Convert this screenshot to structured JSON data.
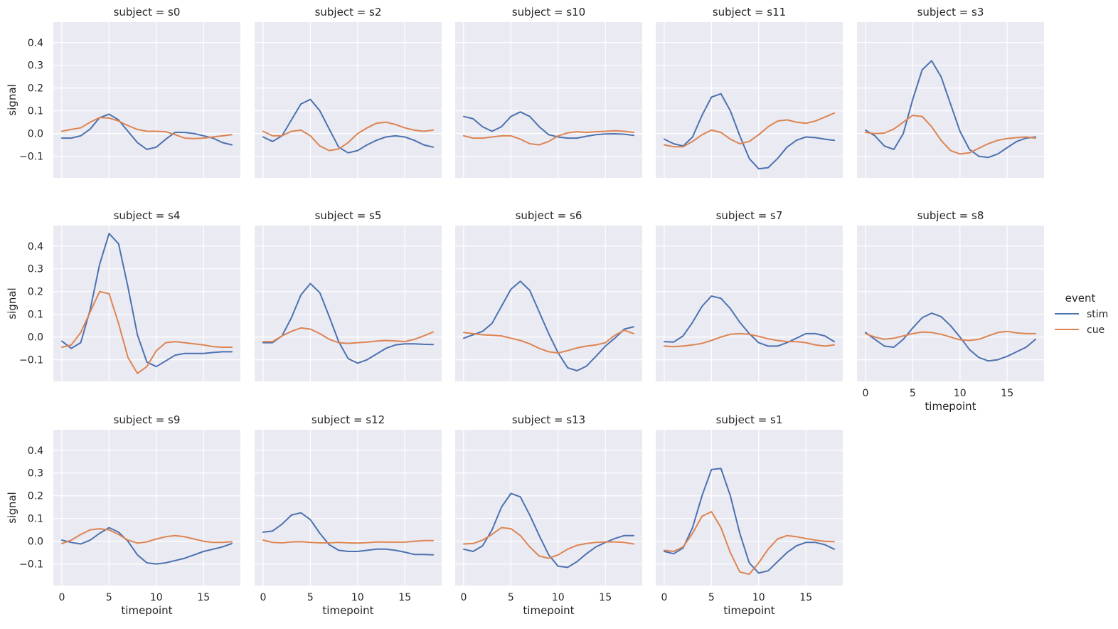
{
  "chart_data": {
    "type": "line",
    "grid_cols": 5,
    "xlabel": "timepoint",
    "ylabel": "signal",
    "xlim": [
      -0.9,
      18.9
    ],
    "ylim": [
      -0.195,
      0.49
    ],
    "xticks": [
      0,
      5,
      10,
      15
    ],
    "yticks": [
      -0.1,
      0.0,
      0.1,
      0.2,
      0.3,
      0.4
    ],
    "ytick_labels": [
      "−0.1",
      "0.0",
      "0.1",
      "0.2",
      "0.3",
      "0.4"
    ],
    "grid": true,
    "legend": {
      "title": "event",
      "placement": "right",
      "entries": [
        {
          "name": "stim",
          "color": "#4C72B0"
        },
        {
          "name": "cue",
          "color": "#DD8452"
        }
      ]
    },
    "x": [
      0,
      1,
      2,
      3,
      4,
      5,
      6,
      7,
      8,
      9,
      10,
      11,
      12,
      13,
      14,
      15,
      16,
      17,
      18
    ],
    "facets": [
      {
        "title": "subject = s0",
        "series": [
          {
            "name": "stim",
            "values": [
              -0.02,
              -0.02,
              -0.01,
              0.02,
              0.07,
              0.085,
              0.06,
              0.01,
              -0.04,
              -0.07,
              -0.06,
              -0.025,
              0.005,
              0.005,
              0.0,
              -0.01,
              -0.02,
              -0.04,
              -0.05
            ]
          },
          {
            "name": "cue",
            "values": [
              0.01,
              0.018,
              0.025,
              0.05,
              0.07,
              0.068,
              0.055,
              0.035,
              0.018,
              0.01,
              0.01,
              0.008,
              -0.005,
              -0.02,
              -0.022,
              -0.02,
              -0.015,
              -0.01,
              -0.005
            ]
          }
        ]
      },
      {
        "title": "subject = s2",
        "series": [
          {
            "name": "stim",
            "values": [
              -0.015,
              -0.035,
              -0.01,
              0.06,
              0.13,
              0.15,
              0.1,
              0.02,
              -0.06,
              -0.085,
              -0.075,
              -0.05,
              -0.03,
              -0.015,
              -0.01,
              -0.015,
              -0.03,
              -0.05,
              -0.06
            ]
          },
          {
            "name": "cue",
            "values": [
              0.01,
              -0.01,
              -0.01,
              0.01,
              0.015,
              -0.01,
              -0.055,
              -0.075,
              -0.068,
              -0.04,
              0.0,
              0.025,
              0.045,
              0.05,
              0.04,
              0.025,
              0.015,
              0.01,
              0.015
            ]
          }
        ]
      },
      {
        "title": "subject = s10",
        "series": [
          {
            "name": "stim",
            "values": [
              0.075,
              0.065,
              0.03,
              0.01,
              0.03,
              0.075,
              0.095,
              0.075,
              0.03,
              -0.005,
              -0.015,
              -0.02,
              -0.02,
              -0.012,
              -0.005,
              -0.002,
              -0.001,
              -0.003,
              -0.008
            ]
          },
          {
            "name": "cue",
            "values": [
              -0.01,
              -0.02,
              -0.02,
              -0.015,
              -0.01,
              -0.01,
              -0.025,
              -0.045,
              -0.05,
              -0.035,
              -0.01,
              0.003,
              0.008,
              0.005,
              0.008,
              0.01,
              0.012,
              0.01,
              0.005
            ]
          }
        ]
      },
      {
        "title": "subject = s11",
        "series": [
          {
            "name": "stim",
            "values": [
              -0.025,
              -0.045,
              -0.055,
              -0.015,
              0.08,
              0.16,
              0.175,
              0.1,
              -0.01,
              -0.11,
              -0.155,
              -0.15,
              -0.11,
              -0.06,
              -0.03,
              -0.015,
              -0.018,
              -0.025,
              -0.03
            ]
          },
          {
            "name": "cue",
            "values": [
              -0.05,
              -0.058,
              -0.058,
              -0.035,
              -0.005,
              0.015,
              0.005,
              -0.025,
              -0.045,
              -0.035,
              -0.005,
              0.03,
              0.055,
              0.06,
              0.05,
              0.045,
              0.055,
              0.072,
              0.09
            ]
          }
        ]
      },
      {
        "title": "subject = s3",
        "series": [
          {
            "name": "stim",
            "values": [
              0.015,
              -0.01,
              -0.055,
              -0.07,
              0.0,
              0.15,
              0.28,
              0.32,
              0.25,
              0.13,
              0.01,
              -0.07,
              -0.1,
              -0.105,
              -0.09,
              -0.062,
              -0.035,
              -0.02,
              -0.015
            ]
          },
          {
            "name": "cue",
            "values": [
              0.005,
              0.0,
              0.002,
              0.02,
              0.05,
              0.08,
              0.075,
              0.03,
              -0.03,
              -0.075,
              -0.09,
              -0.085,
              -0.065,
              -0.045,
              -0.03,
              -0.022,
              -0.018,
              -0.015,
              -0.02
            ]
          }
        ]
      },
      {
        "title": "subject = s4",
        "series": [
          {
            "name": "stim",
            "values": [
              -0.018,
              -0.05,
              -0.025,
              0.12,
              0.32,
              0.455,
              0.41,
              0.22,
              0.01,
              -0.11,
              -0.13,
              -0.105,
              -0.08,
              -0.072,
              -0.072,
              -0.072,
              -0.068,
              -0.065,
              -0.065
            ]
          },
          {
            "name": "cue",
            "values": [
              -0.045,
              -0.035,
              0.02,
              0.11,
              0.2,
              0.19,
              0.06,
              -0.09,
              -0.16,
              -0.13,
              -0.06,
              -0.025,
              -0.02,
              -0.025,
              -0.03,
              -0.035,
              -0.042,
              -0.045,
              -0.045
            ]
          }
        ]
      },
      {
        "title": "subject = s5",
        "series": [
          {
            "name": "stim",
            "values": [
              -0.025,
              -0.025,
              0.005,
              0.085,
              0.185,
              0.235,
              0.195,
              0.09,
              -0.02,
              -0.095,
              -0.115,
              -0.1,
              -0.075,
              -0.05,
              -0.035,
              -0.03,
              -0.03,
              -0.032,
              -0.033
            ]
          },
          {
            "name": "cue",
            "values": [
              -0.02,
              -0.02,
              0.005,
              0.025,
              0.04,
              0.035,
              0.015,
              -0.01,
              -0.025,
              -0.028,
              -0.025,
              -0.022,
              -0.018,
              -0.015,
              -0.017,
              -0.02,
              -0.01,
              0.005,
              0.022
            ]
          }
        ]
      },
      {
        "title": "subject = s6",
        "series": [
          {
            "name": "stim",
            "values": [
              -0.005,
              0.01,
              0.025,
              0.06,
              0.135,
              0.21,
              0.245,
              0.205,
              0.11,
              0.015,
              -0.07,
              -0.135,
              -0.148,
              -0.128,
              -0.085,
              -0.04,
              -0.005,
              0.035,
              0.045
            ]
          },
          {
            "name": "cue",
            "values": [
              0.02,
              0.015,
              0.01,
              0.008,
              0.005,
              -0.005,
              -0.015,
              -0.03,
              -0.05,
              -0.065,
              -0.07,
              -0.06,
              -0.048,
              -0.04,
              -0.035,
              -0.025,
              0.008,
              0.03,
              0.015
            ]
          }
        ]
      },
      {
        "title": "subject = s7",
        "series": [
          {
            "name": "stim",
            "values": [
              -0.02,
              -0.022,
              0.005,
              0.065,
              0.135,
              0.18,
              0.17,
              0.125,
              0.065,
              0.015,
              -0.025,
              -0.04,
              -0.04,
              -0.025,
              -0.005,
              0.015,
              0.015,
              0.005,
              -0.02
            ]
          },
          {
            "name": "cue",
            "values": [
              -0.04,
              -0.042,
              -0.04,
              -0.035,
              -0.028,
              -0.015,
              0.0,
              0.012,
              0.015,
              0.012,
              0.003,
              -0.008,
              -0.015,
              -0.02,
              -0.02,
              -0.025,
              -0.035,
              -0.04,
              -0.035
            ]
          }
        ]
      },
      {
        "title": "subject = s8",
        "series": [
          {
            "name": "stim",
            "values": [
              0.02,
              -0.01,
              -0.04,
              -0.045,
              -0.01,
              0.04,
              0.085,
              0.105,
              0.09,
              0.05,
              0.0,
              -0.055,
              -0.09,
              -0.105,
              -0.1,
              -0.085,
              -0.065,
              -0.045,
              -0.01
            ]
          },
          {
            "name": "cue",
            "values": [
              0.015,
              0.0,
              -0.01,
              -0.005,
              0.005,
              0.015,
              0.022,
              0.02,
              0.012,
              0.0,
              -0.012,
              -0.015,
              -0.01,
              0.005,
              0.02,
              0.025,
              0.018,
              0.015,
              0.015
            ]
          }
        ]
      },
      {
        "title": "subject = s9",
        "series": [
          {
            "name": "stim",
            "values": [
              0.005,
              -0.005,
              -0.012,
              0.005,
              0.035,
              0.06,
              0.04,
              0.0,
              -0.06,
              -0.095,
              -0.1,
              -0.095,
              -0.085,
              -0.075,
              -0.06,
              -0.045,
              -0.035,
              -0.025,
              -0.01
            ]
          },
          {
            "name": "cue",
            "values": [
              -0.01,
              0.005,
              0.03,
              0.05,
              0.055,
              0.05,
              0.03,
              0.005,
              -0.008,
              -0.003,
              0.01,
              0.02,
              0.025,
              0.02,
              0.01,
              0.0,
              -0.005,
              -0.005,
              -0.002
            ]
          }
        ]
      },
      {
        "title": "subject = s12",
        "series": [
          {
            "name": "stim",
            "values": [
              0.04,
              0.045,
              0.075,
              0.115,
              0.125,
              0.095,
              0.035,
              -0.015,
              -0.04,
              -0.045,
              -0.045,
              -0.04,
              -0.035,
              -0.035,
              -0.04,
              -0.048,
              -0.058,
              -0.058,
              -0.06
            ]
          },
          {
            "name": "cue",
            "values": [
              0.005,
              -0.005,
              -0.007,
              -0.003,
              -0.002,
              -0.005,
              -0.007,
              -0.007,
              -0.005,
              -0.007,
              -0.008,
              -0.006,
              -0.003,
              -0.004,
              -0.004,
              -0.004,
              0.0,
              0.003,
              0.003
            ]
          }
        ]
      },
      {
        "title": "subject = s13",
        "series": [
          {
            "name": "stim",
            "values": [
              -0.035,
              -0.045,
              -0.02,
              0.05,
              0.15,
              0.21,
              0.195,
              0.115,
              0.025,
              -0.06,
              -0.11,
              -0.115,
              -0.09,
              -0.055,
              -0.025,
              -0.005,
              0.012,
              0.025,
              0.025
            ]
          },
          {
            "name": "cue",
            "values": [
              -0.012,
              -0.01,
              0.005,
              0.03,
              0.06,
              0.055,
              0.025,
              -0.025,
              -0.065,
              -0.075,
              -0.06,
              -0.035,
              -0.018,
              -0.01,
              -0.005,
              -0.003,
              -0.003,
              -0.005,
              -0.012
            ]
          }
        ]
      },
      {
        "title": "subject = s1",
        "series": [
          {
            "name": "stim",
            "values": [
              -0.045,
              -0.055,
              -0.03,
              0.06,
              0.2,
              0.315,
              0.32,
              0.2,
              0.035,
              -0.095,
              -0.14,
              -0.13,
              -0.09,
              -0.05,
              -0.02,
              -0.005,
              -0.005,
              -0.015,
              -0.035
            ]
          },
          {
            "name": "cue",
            "values": [
              -0.04,
              -0.045,
              -0.025,
              0.035,
              0.11,
              0.13,
              0.06,
              -0.05,
              -0.135,
              -0.145,
              -0.095,
              -0.035,
              0.01,
              0.025,
              0.02,
              0.012,
              0.005,
              0.0,
              -0.002
            ]
          }
        ]
      }
    ]
  }
}
